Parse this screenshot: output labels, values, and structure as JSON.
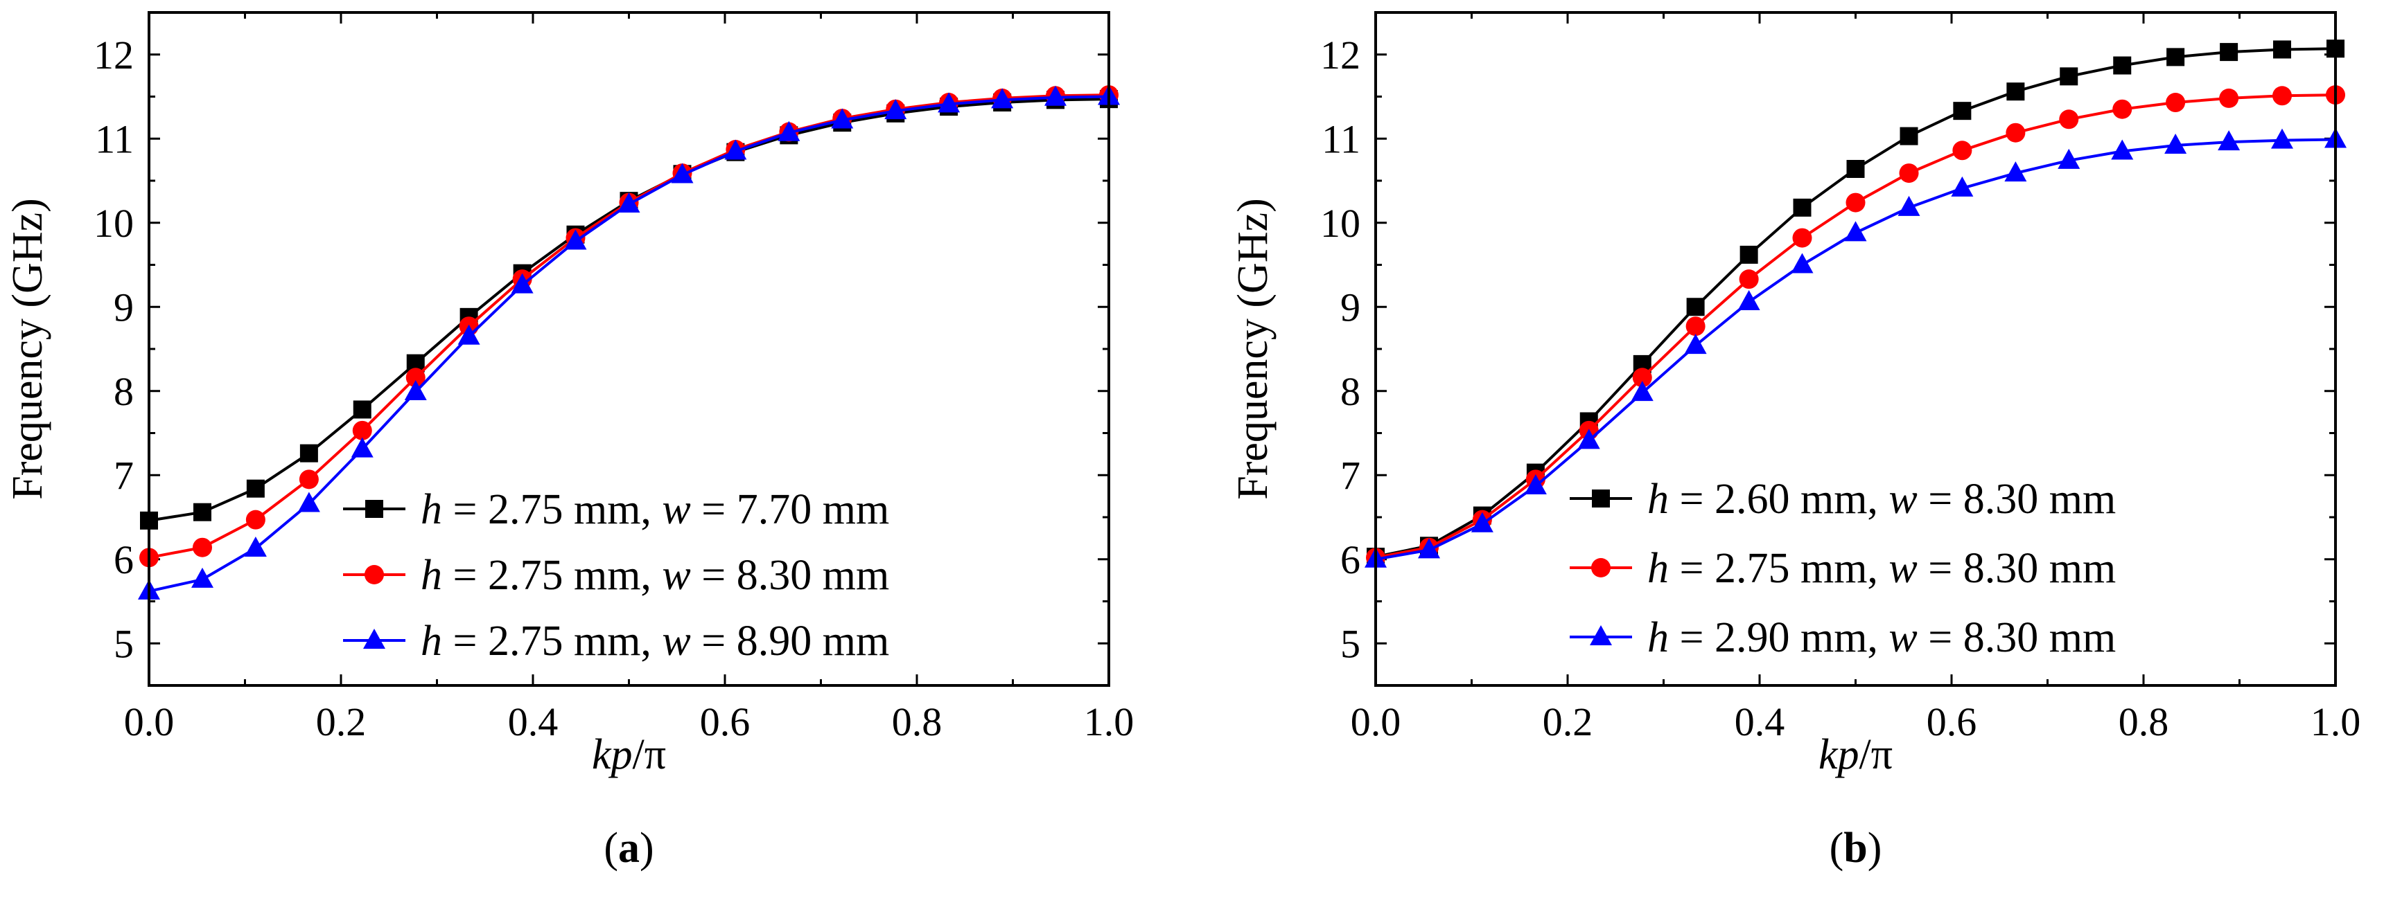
{
  "chart_data": [
    {
      "type": "line",
      "panel_label": "(a)",
      "panel_letter": "a",
      "xlabel": "kp/π",
      "xlabel_italic": "kp",
      "xlabel_rest": "/π",
      "ylabel": "Frequency (GHz)",
      "xlim": [
        0,
        1
      ],
      "ylim": [
        4.5,
        12.5
      ],
      "xticks": [
        0.0,
        0.2,
        0.4,
        0.6,
        0.8,
        1.0
      ],
      "xtick_labels": [
        "0.0",
        "0.2",
        "0.4",
        "0.6",
        "0.8",
        "1.0"
      ],
      "yticks": [
        5,
        6,
        7,
        8,
        9,
        10,
        11,
        12
      ],
      "ytick_labels": [
        "5",
        "6",
        "7",
        "8",
        "9",
        "10",
        "11",
        "12"
      ],
      "legend_position": "bottom-right",
      "x": [
        0,
        0.0556,
        0.1111,
        0.1667,
        0.2222,
        0.2778,
        0.3333,
        0.3889,
        0.4444,
        0.5,
        0.5556,
        0.6111,
        0.6667,
        0.7222,
        0.7778,
        0.8333,
        0.8889,
        0.9444,
        1.0
      ],
      "series": [
        {
          "name": "h = 2.75 mm, w = 7.70 mm",
          "label_h": "h",
          "label_h_val": " = 2.75 mm, ",
          "label_w": "w",
          "label_w_val": " = 7.70 mm",
          "color": "#000000",
          "marker": "square",
          "values": [
            6.46,
            6.56,
            6.84,
            7.26,
            7.78,
            8.33,
            8.88,
            9.4,
            9.86,
            10.26,
            10.58,
            10.84,
            11.04,
            11.19,
            11.3,
            11.38,
            11.43,
            11.46,
            11.47
          ]
        },
        {
          "name": "h = 2.75 mm, w = 8.30 mm",
          "label_h": "h",
          "label_h_val": " = 2.75 mm, ",
          "label_w": "w",
          "label_w_val": " = 8.30 mm",
          "color": "#ff0000",
          "marker": "circle",
          "values": [
            6.02,
            6.14,
            6.47,
            6.95,
            7.53,
            8.16,
            8.77,
            9.33,
            9.82,
            10.24,
            10.59,
            10.87,
            11.08,
            11.24,
            11.35,
            11.43,
            11.48,
            11.51,
            11.52
          ]
        },
        {
          "name": "h = 2.75 mm, w = 8.90 mm",
          "label_h": "h",
          "label_h_val": " = 2.75 mm, ",
          "label_w": "w",
          "label_w_val": " = 8.90 mm",
          "color": "#0000ff",
          "marker": "triangle",
          "values": [
            5.62,
            5.76,
            6.13,
            6.66,
            7.31,
            7.99,
            8.65,
            9.26,
            9.78,
            10.22,
            10.57,
            10.85,
            11.07,
            11.22,
            11.33,
            11.41,
            11.46,
            11.49,
            11.5
          ]
        }
      ]
    },
    {
      "type": "line",
      "panel_label": "(b)",
      "panel_letter": "b",
      "xlabel": "kp/π",
      "xlabel_italic": "kp",
      "xlabel_rest": "/π",
      "ylabel": "Frequency (GHz)",
      "xlim": [
        0,
        1
      ],
      "ylim": [
        4.5,
        12.5
      ],
      "xticks": [
        0.0,
        0.2,
        0.4,
        0.6,
        0.8,
        1.0
      ],
      "xtick_labels": [
        "0.0",
        "0.2",
        "0.4",
        "0.6",
        "0.8",
        "1.0"
      ],
      "yticks": [
        5,
        6,
        7,
        8,
        9,
        10,
        11,
        12
      ],
      "ytick_labels": [
        "5",
        "6",
        "7",
        "8",
        "9",
        "10",
        "11",
        "12"
      ],
      "legend_position": "bottom-right",
      "x": [
        0,
        0.0556,
        0.1111,
        0.1667,
        0.2222,
        0.2778,
        0.3333,
        0.3889,
        0.4444,
        0.5,
        0.5556,
        0.6111,
        0.6667,
        0.7222,
        0.7778,
        0.8333,
        0.8889,
        0.9444,
        1.0
      ],
      "series": [
        {
          "name": "h = 2.60 mm, w = 8.30 mm",
          "label_h": "h",
          "label_h_val": " = 2.60 mm, ",
          "label_w": "w",
          "label_w_val": " = 8.30 mm",
          "color": "#000000",
          "marker": "square",
          "values": [
            6.03,
            6.16,
            6.52,
            7.03,
            7.64,
            8.32,
            9.0,
            9.62,
            10.18,
            10.64,
            11.03,
            11.33,
            11.56,
            11.74,
            11.87,
            11.97,
            12.03,
            12.06,
            12.07
          ]
        },
        {
          "name": "h = 2.75 mm, w = 8.30 mm",
          "label_h": "h",
          "label_h_val": " = 2.75 mm, ",
          "label_w": "w",
          "label_w_val": " = 8.30 mm",
          "color": "#ff0000",
          "marker": "circle",
          "values": [
            6.02,
            6.14,
            6.47,
            6.95,
            7.53,
            8.16,
            8.77,
            9.33,
            9.82,
            10.24,
            10.59,
            10.86,
            11.07,
            11.23,
            11.35,
            11.43,
            11.48,
            11.51,
            11.52
          ]
        },
        {
          "name": "h = 2.90 mm, w = 8.30 mm",
          "label_h": "h",
          "label_h_val": " = 2.90 mm, ",
          "label_w": "w",
          "label_w_val": " = 8.30 mm",
          "color": "#0000ff",
          "marker": "triangle",
          "values": [
            6.0,
            6.11,
            6.42,
            6.87,
            7.41,
            7.98,
            8.54,
            9.06,
            9.5,
            9.88,
            10.18,
            10.41,
            10.59,
            10.74,
            10.85,
            10.92,
            10.96,
            10.98,
            10.99
          ]
        }
      ]
    }
  ]
}
